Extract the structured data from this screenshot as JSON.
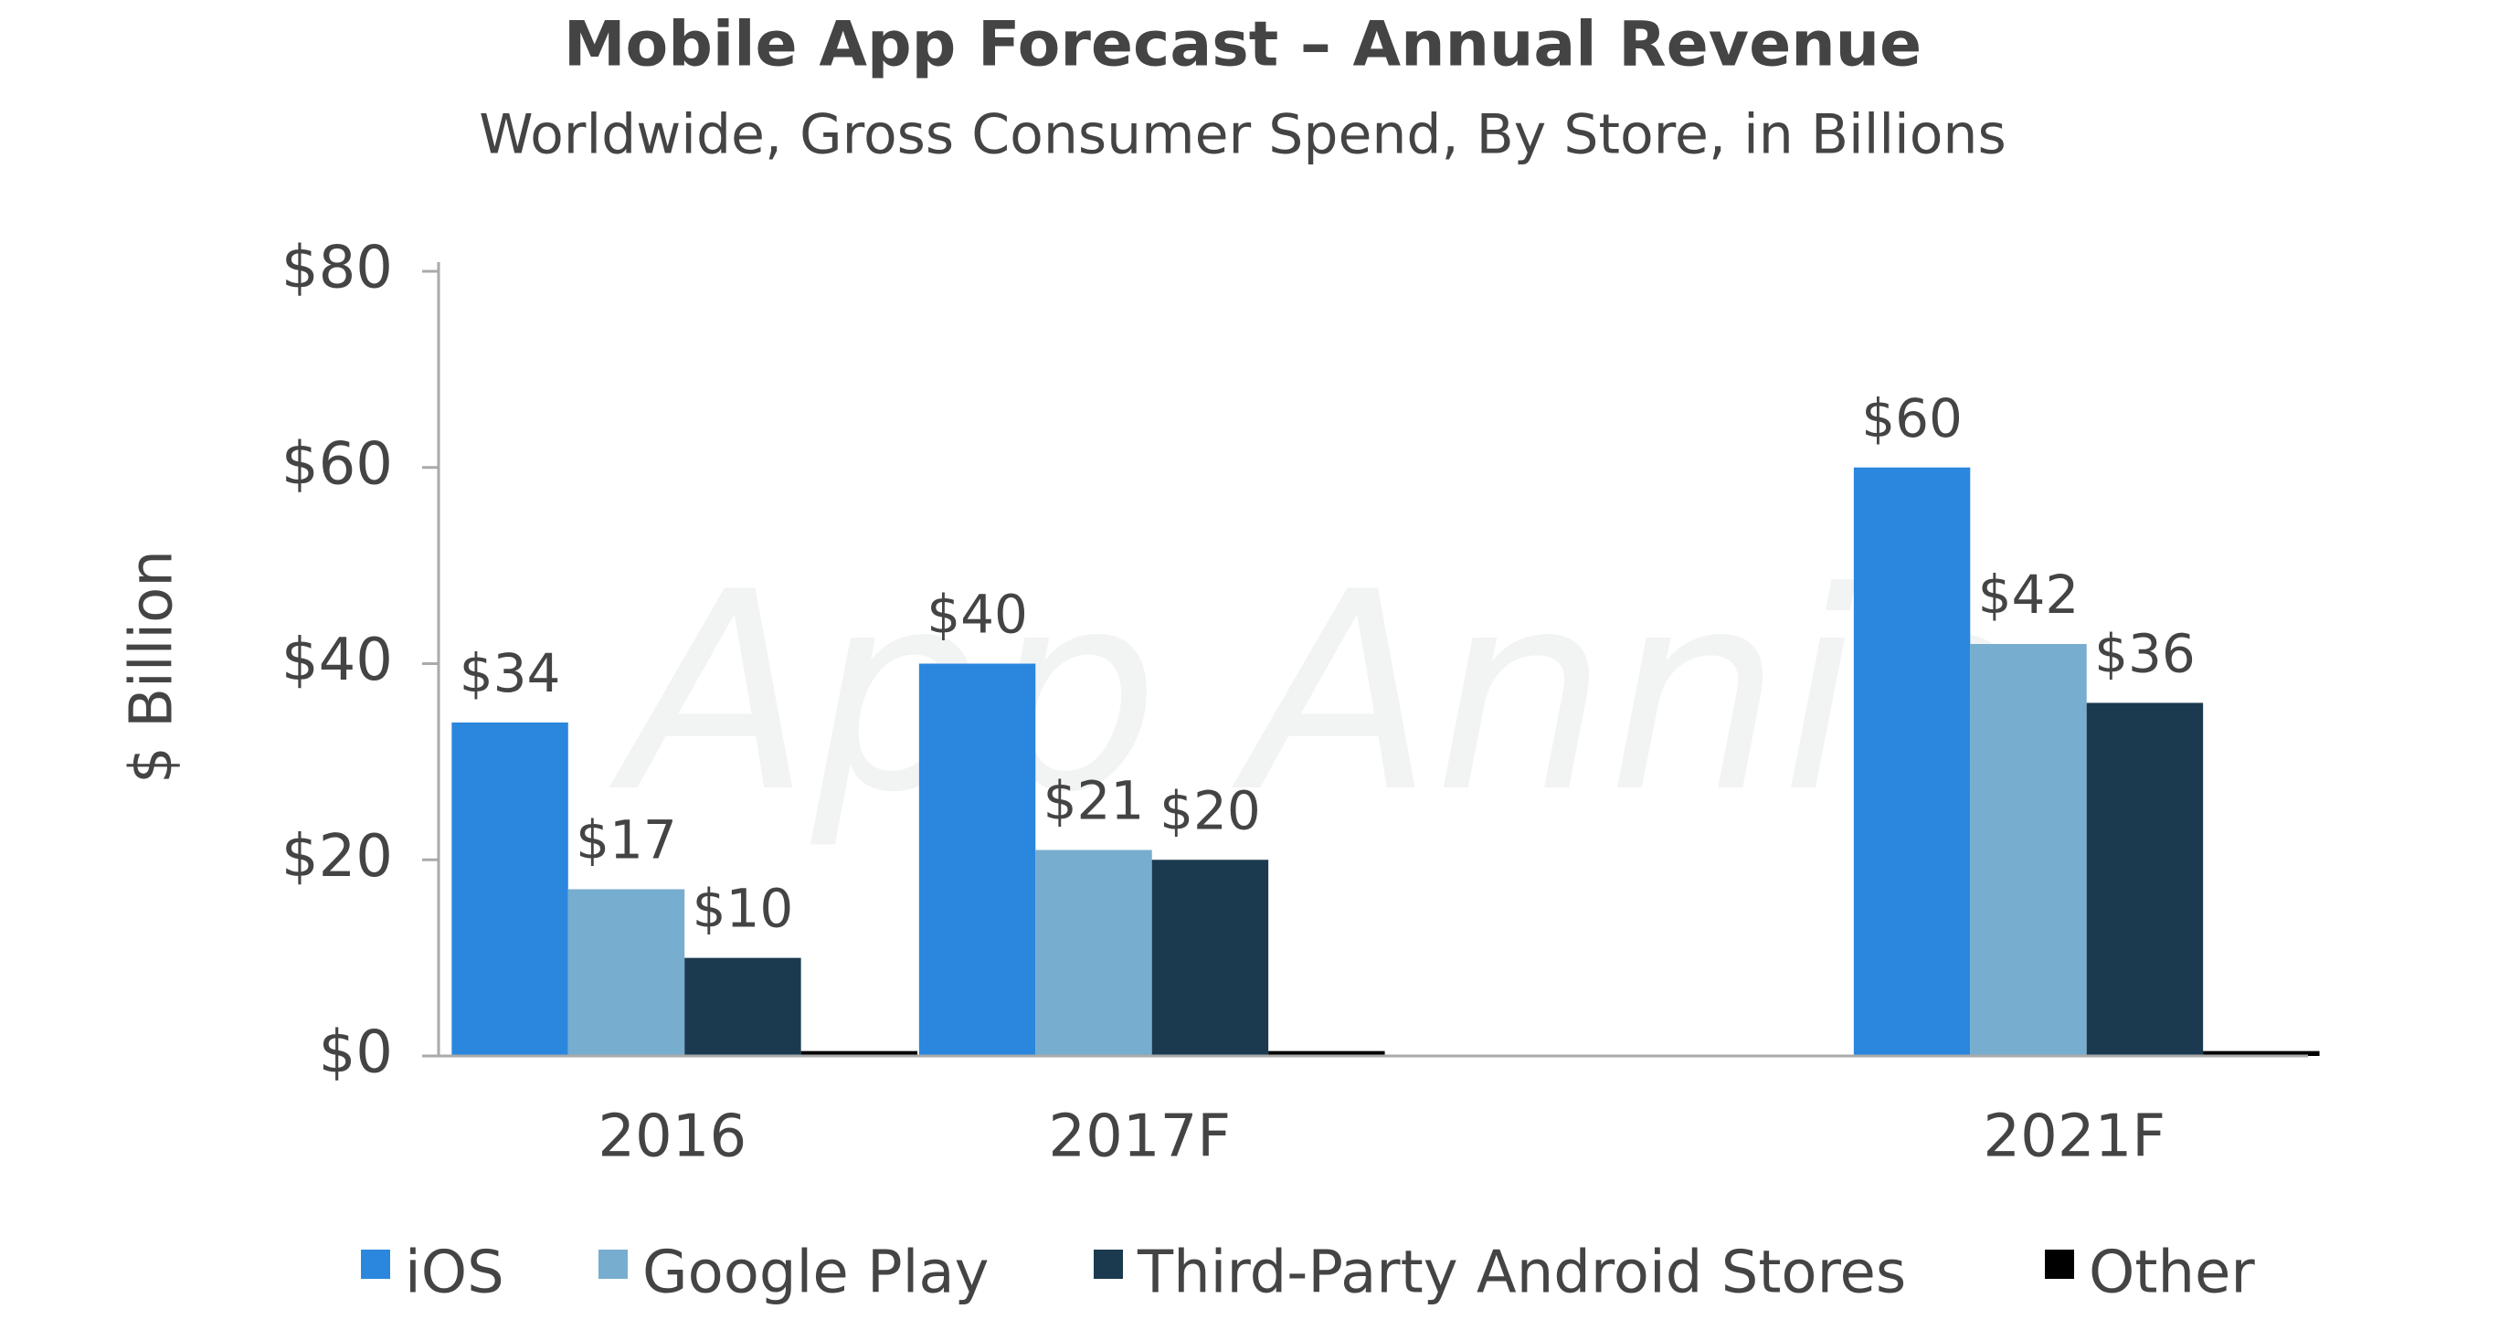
{
  "chart_data": {
    "type": "bar",
    "title": "Mobile App Forecast – Annual Revenue",
    "subtitle": "Worldwide, Gross Consumer Spend, By Store, in Billions",
    "watermark": "App Annie",
    "y_label": "$ Billion",
    "categories": [
      "2016",
      "2017F",
      null,
      "2021F"
    ],
    "series": [
      {
        "name": "iOS",
        "color": "#2a87dd",
        "values": [
          34,
          40,
          null,
          60
        ],
        "value_labels": [
          "$34",
          "$40",
          null,
          "$60"
        ]
      },
      {
        "name": "Google Play",
        "color": "#77adcf",
        "values": [
          17,
          21,
          null,
          42
        ],
        "value_labels": [
          "$17",
          "$21",
          null,
          "$42"
        ]
      },
      {
        "name": "Third-Party Android Stores",
        "color": "#1b3a4f",
        "values": [
          10,
          20,
          null,
          36
        ],
        "value_labels": [
          "$10",
          "$20",
          null,
          "$36"
        ]
      },
      {
        "name": "Other",
        "color": "#000000",
        "values": [
          0.5,
          0.5,
          null,
          0.5
        ]
      }
    ],
    "ylim": [
      0,
      80
    ],
    "yticks": [
      {
        "value": 0,
        "label": "$0"
      },
      {
        "value": 20,
        "label": "$20"
      },
      {
        "value": 40,
        "label": "$40"
      },
      {
        "value": 60,
        "label": "$60"
      },
      {
        "value": 80,
        "label": "$80"
      }
    ],
    "legend": "bottom"
  }
}
